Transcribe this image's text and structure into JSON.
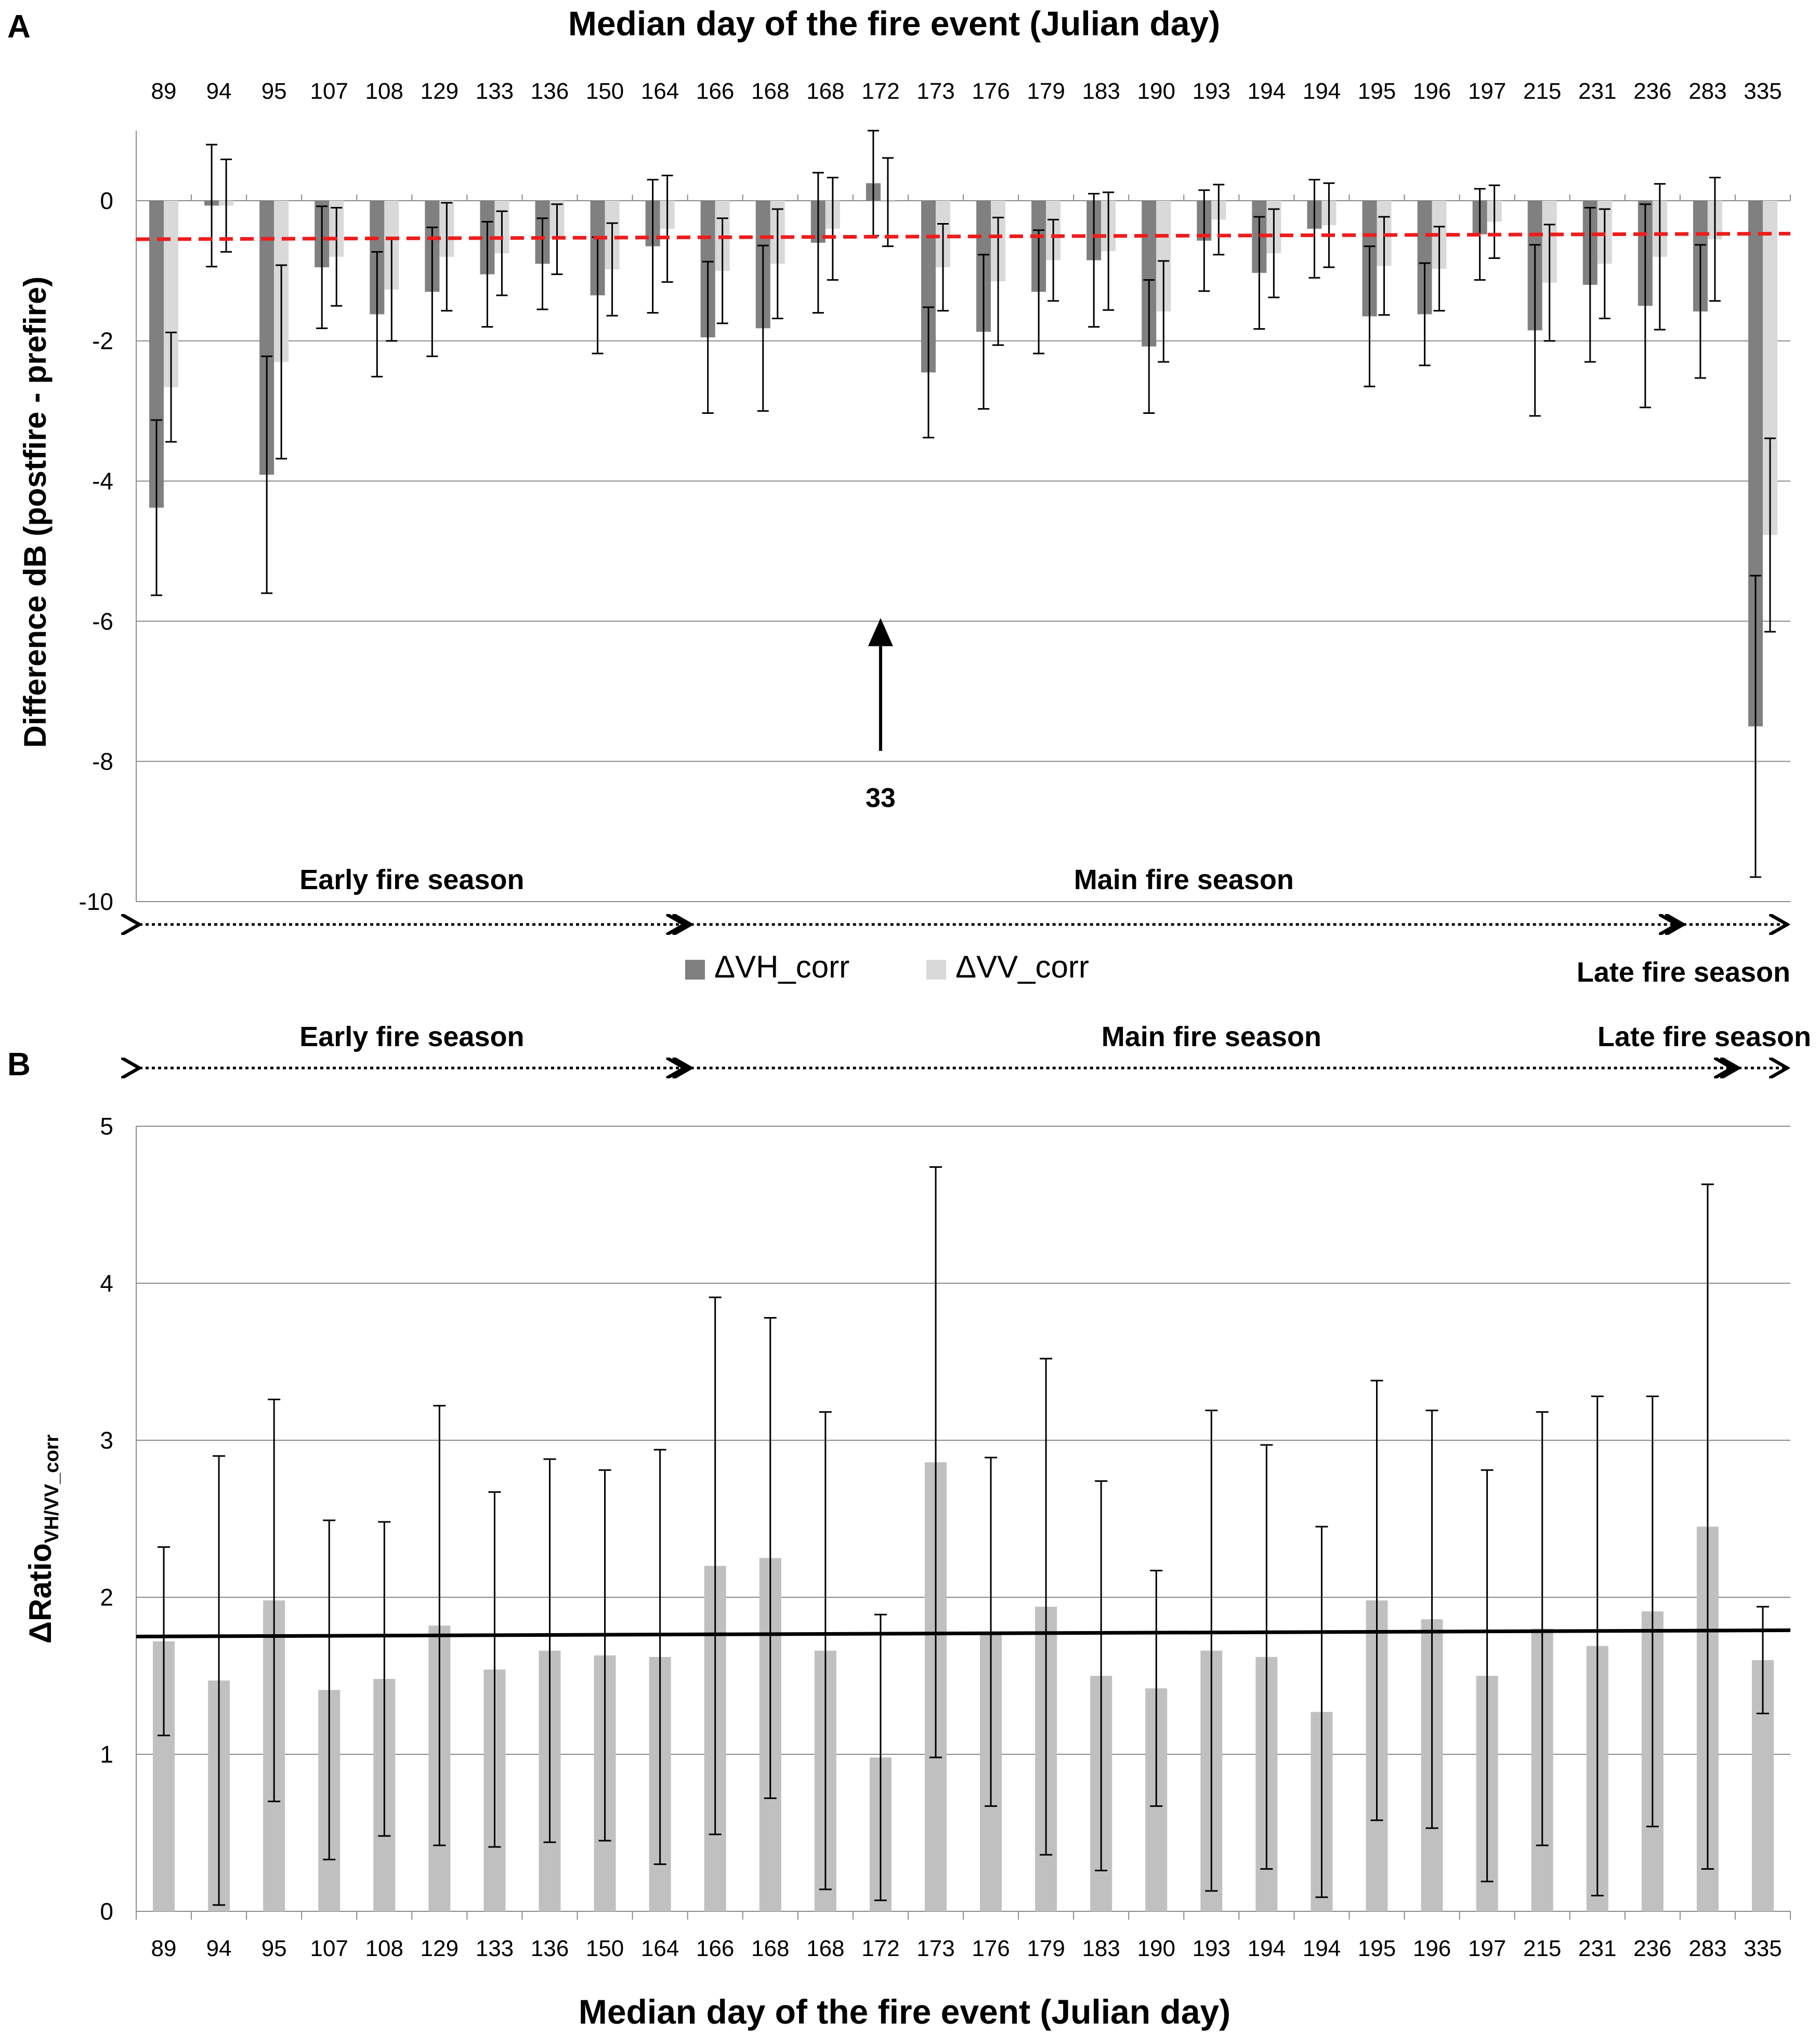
{
  "chart_data": [
    {
      "panel": "A",
      "type": "bar",
      "title": "Median day of the fire event (Julian day)",
      "ylabel": "Difference dB (postfire - prefire)",
      "xlabel": "",
      "ylim": [
        -10,
        1
      ],
      "yticks": [
        0,
        -2,
        -4,
        -6,
        -8,
        -10
      ],
      "categories": [
        "89",
        "94",
        "95",
        "107",
        "108",
        "129",
        "133",
        "136",
        "150",
        "164",
        "166",
        "168",
        "168",
        "172",
        "173",
        "176",
        "179",
        "183",
        "190",
        "193",
        "194",
        "194",
        "195",
        "196",
        "197",
        "215",
        "231",
        "236",
        "283",
        "335"
      ],
      "series": [
        {
          "name": "ΔVH_corr",
          "color": "#808080",
          "values": [
            -4.38,
            -0.07,
            -3.91,
            -0.95,
            -1.62,
            -1.3,
            -1.05,
            -0.9,
            -1.35,
            -0.65,
            -1.95,
            -1.82,
            -0.6,
            0.25,
            -2.45,
            -1.87,
            -1.3,
            -0.85,
            -2.08,
            -0.57,
            -1.03,
            -0.4,
            -1.65,
            -1.62,
            -0.48,
            -1.85,
            -1.2,
            -1.5,
            -1.58,
            -7.5
          ],
          "err": [
            1.25,
            0.87,
            1.69,
            0.87,
            0.89,
            0.92,
            0.75,
            0.65,
            0.83,
            0.95,
            1.08,
            1.18,
            1.0,
            0.75,
            0.93,
            1.1,
            0.88,
            0.95,
            0.95,
            0.72,
            0.8,
            0.7,
            1.0,
            0.73,
            0.65,
            1.22,
            1.1,
            1.45,
            0.95,
            2.15
          ]
        },
        {
          "name": "ΔVV_corr",
          "color": "#d9d9d9",
          "values": [
            -2.66,
            -0.07,
            -2.3,
            -0.8,
            -1.27,
            -0.8,
            -0.75,
            -0.55,
            -0.98,
            -0.4,
            -1.0,
            -0.9,
            -0.4,
            -0.02,
            -0.95,
            -1.15,
            -0.85,
            -0.72,
            -1.58,
            -0.27,
            -0.75,
            -0.35,
            -0.93,
            -0.97,
            -0.3,
            -1.17,
            -0.9,
            -0.8,
            -0.55,
            -4.77
          ],
          "err": [
            0.78,
            0.66,
            1.38,
            0.7,
            0.73,
            0.77,
            0.6,
            0.5,
            0.66,
            0.76,
            0.75,
            0.78,
            0.73,
            0.63,
            0.62,
            0.91,
            0.58,
            0.84,
            0.72,
            0.5,
            0.63,
            0.6,
            0.7,
            0.6,
            0.52,
            0.83,
            0.78,
            1.04,
            0.88,
            1.38
          ]
        }
      ],
      "reference_line": {
        "style": "dashed",
        "color": "#ee1c1c",
        "start": -0.55,
        "end": -0.47
      },
      "annotation": {
        "text": "33",
        "x_category_index": 13,
        "arrow_tip_value": -6.0
      },
      "seasons": [
        {
          "label": "Early fire season",
          "from_index": 0,
          "to_index": 9
        },
        {
          "label": "Main fire season",
          "from_index": 10,
          "to_index": 27
        },
        {
          "label": "Late fire season",
          "from_index": 28,
          "to_index": 29
        }
      ],
      "legend": {
        "position": "bottom-center",
        "entries": [
          "ΔVH_corr",
          "ΔVV_corr"
        ]
      }
    },
    {
      "panel": "B",
      "type": "bar",
      "xlabel": "Median day of the fire event (Julian day)",
      "ylabel_main": "ΔRatio",
      "ylabel_sub": "VH/VV_corr",
      "ylim": [
        0,
        5
      ],
      "yticks": [
        0,
        1,
        2,
        3,
        4,
        5
      ],
      "categories": [
        "89",
        "94",
        "95",
        "107",
        "108",
        "129",
        "133",
        "136",
        "150",
        "164",
        "166",
        "168",
        "168",
        "172",
        "173",
        "176",
        "179",
        "183",
        "190",
        "193",
        "194",
        "194",
        "195",
        "196",
        "197",
        "215",
        "231",
        "236",
        "283",
        "335"
      ],
      "series": [
        {
          "name": "ΔRatio VH/VV_corr",
          "color": "#c0c0c0",
          "values": [
            1.72,
            1.47,
            1.98,
            1.41,
            1.48,
            1.82,
            1.54,
            1.66,
            1.63,
            1.62,
            2.2,
            2.25,
            1.66,
            0.98,
            2.86,
            1.78,
            1.94,
            1.5,
            1.42,
            1.66,
            1.62,
            1.27,
            1.98,
            1.86,
            1.5,
            1.8,
            1.69,
            1.91,
            2.45,
            1.6
          ],
          "err": [
            0.6,
            1.43,
            1.28,
            1.08,
            1.0,
            1.4,
            1.13,
            1.22,
            1.18,
            1.32,
            1.71,
            1.53,
            1.52,
            0.91,
            1.88,
            1.11,
            1.58,
            1.24,
            0.75,
            1.53,
            1.35,
            1.18,
            1.4,
            1.33,
            1.31,
            1.38,
            1.59,
            1.37,
            2.18,
            0.34
          ]
        }
      ],
      "trend_line": {
        "color": "#000000",
        "start": 1.75,
        "end": 1.79
      },
      "seasons": [
        {
          "label": "Early fire season",
          "from_index": 0,
          "to_index": 9
        },
        {
          "label": "Main fire season",
          "from_index": 10,
          "to_index": 28
        },
        {
          "label": "Late fire season",
          "from_index": 29,
          "to_index": 29
        }
      ]
    }
  ],
  "panel_labels": {
    "a": "A",
    "b": "B"
  }
}
